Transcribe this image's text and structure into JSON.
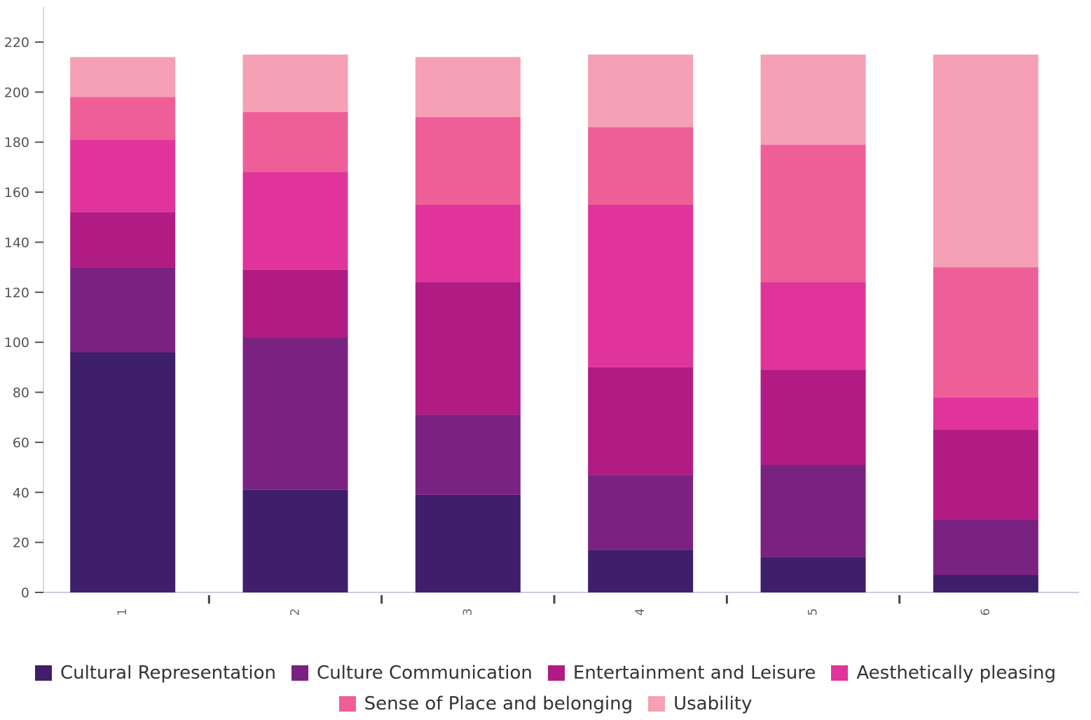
{
  "chart_data": {
    "type": "bar",
    "stacked": true,
    "categories": [
      "1",
      "2",
      "3",
      "4",
      "5",
      "6"
    ],
    "series": [
      {
        "name": "Cultural Representation",
        "color": "#3f1e6b",
        "values": [
          96,
          41,
          39,
          17,
          14,
          7
        ]
      },
      {
        "name": "Culture Communication",
        "color": "#7a2282",
        "values": [
          34,
          61,
          32,
          30,
          37,
          22
        ]
      },
      {
        "name": "Entertainment and Leisure",
        "color": "#b01c83",
        "values": [
          22,
          27,
          53,
          43,
          38,
          36
        ]
      },
      {
        "name": "Aesthetically pleasing",
        "color": "#e0349b",
        "values": [
          29,
          39,
          31,
          65,
          35,
          13
        ]
      },
      {
        "name": "Sense of Place and belonging",
        "color": "#ee5f98",
        "values": [
          17,
          24,
          35,
          31,
          55,
          52
        ]
      },
      {
        "name": "Usability",
        "color": "#f5a0b5",
        "values": [
          16,
          23,
          24,
          29,
          36,
          85
        ]
      }
    ],
    "yticks": [
      0,
      20,
      40,
      60,
      80,
      100,
      120,
      140,
      160,
      180,
      200,
      220
    ],
    "ylim": [
      0,
      220
    ],
    "xlabel": "",
    "ylabel": "",
    "legend_position": "bottom",
    "grid": false
  }
}
